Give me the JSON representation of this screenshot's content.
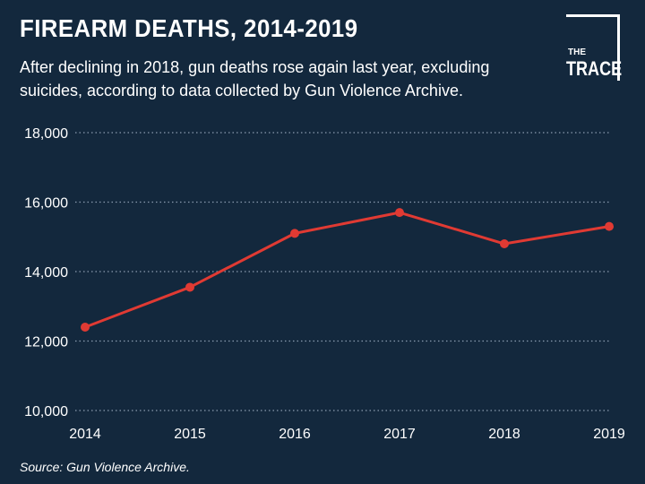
{
  "header": {
    "title": "FIREARM DEATHS, 2014-2019",
    "subtitle": "After declining in 2018, gun deaths rose again last year, excluding suicides, according to data collected by Gun Violence Archive."
  },
  "logo": {
    "line1": "THE",
    "line2": "TRACE"
  },
  "footer": {
    "source": "Source: Gun Violence Archive."
  },
  "colors": {
    "background": "#13283d",
    "line": "#e03a33",
    "grid": "#8a9bb0",
    "text": "#ffffff"
  },
  "chart_data": {
    "type": "line",
    "title": "FIREARM DEATHS, 2014-2019",
    "x": [
      "2014",
      "2015",
      "2016",
      "2017",
      "2018",
      "2019"
    ],
    "series": [
      {
        "values": [
          12400,
          13550,
          15100,
          15700,
          14800,
          15300
        ]
      }
    ],
    "ylim": [
      10000,
      18000
    ],
    "yticks": [
      10000,
      12000,
      14000,
      16000,
      18000
    ],
    "ytick_labels": [
      "10,000",
      "12,000",
      "14,000",
      "16,000",
      "18,000"
    ],
    "grid": "horizontal dotted",
    "legend": "none"
  }
}
